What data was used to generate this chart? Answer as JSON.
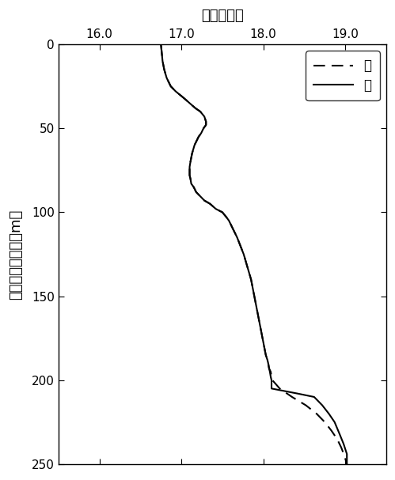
{
  "xlabel_top": "温度（度）",
  "ylabel": "地表からの深度（m）",
  "xlim": [
    15.5,
    19.5
  ],
  "ylim": [
    250,
    0
  ],
  "xticks": [
    16.0,
    17.0,
    18.0,
    19.0
  ],
  "yticks": [
    0,
    50,
    100,
    150,
    200,
    250
  ],
  "legend": [
    "夏",
    "冬"
  ],
  "summer_depth": [
    0,
    5,
    10,
    15,
    20,
    25,
    28,
    30,
    32,
    35,
    38,
    40,
    43,
    46,
    48,
    50,
    53,
    55,
    58,
    60,
    65,
    70,
    73,
    75,
    78,
    80,
    83,
    85,
    88,
    90,
    93,
    95,
    98,
    100,
    103,
    105,
    110,
    115,
    120,
    125,
    130,
    135,
    140,
    145,
    150,
    155,
    160,
    165,
    170,
    175,
    180,
    185,
    188,
    190,
    193,
    195,
    198,
    200,
    205,
    210,
    215,
    220,
    225,
    230,
    235,
    240,
    245,
    250
  ],
  "summer_temp": [
    16.75,
    16.76,
    16.77,
    16.79,
    16.82,
    16.87,
    16.93,
    16.98,
    17.03,
    17.1,
    17.17,
    17.23,
    17.28,
    17.3,
    17.3,
    17.27,
    17.24,
    17.21,
    17.18,
    17.16,
    17.13,
    17.11,
    17.1,
    17.1,
    17.1,
    17.11,
    17.12,
    17.15,
    17.18,
    17.22,
    17.28,
    17.35,
    17.42,
    17.5,
    17.55,
    17.58,
    17.63,
    17.68,
    17.72,
    17.76,
    17.79,
    17.82,
    17.85,
    17.87,
    17.89,
    17.91,
    17.93,
    17.95,
    17.97,
    17.99,
    18.01,
    18.03,
    18.05,
    18.06,
    18.07,
    18.09,
    18.1,
    18.11,
    18.2,
    18.35,
    18.52,
    18.65,
    18.75,
    18.83,
    18.9,
    18.95,
    18.99,
    19.02
  ],
  "winter_depth": [
    0,
    5,
    10,
    15,
    20,
    25,
    28,
    30,
    32,
    35,
    38,
    40,
    43,
    46,
    48,
    50,
    53,
    55,
    58,
    60,
    65,
    70,
    73,
    75,
    78,
    80,
    83,
    85,
    88,
    90,
    93,
    95,
    98,
    100,
    103,
    105,
    110,
    115,
    120,
    125,
    130,
    135,
    140,
    145,
    150,
    155,
    160,
    165,
    170,
    175,
    180,
    185,
    188,
    190,
    193,
    195,
    198,
    200,
    200,
    202,
    205,
    208,
    210,
    215,
    220,
    225,
    232,
    238,
    244,
    250
  ],
  "winter_temp": [
    16.75,
    16.76,
    16.77,
    16.79,
    16.82,
    16.87,
    16.93,
    16.98,
    17.03,
    17.1,
    17.17,
    17.23,
    17.28,
    17.3,
    17.3,
    17.27,
    17.24,
    17.21,
    17.18,
    17.16,
    17.13,
    17.11,
    17.1,
    17.1,
    17.1,
    17.11,
    17.12,
    17.15,
    17.18,
    17.22,
    17.28,
    17.35,
    17.42,
    17.5,
    17.55,
    17.58,
    17.63,
    17.68,
    17.72,
    17.76,
    17.79,
    17.82,
    17.85,
    17.87,
    17.89,
    17.91,
    17.93,
    17.95,
    17.97,
    17.99,
    18.01,
    18.03,
    18.05,
    18.06,
    18.07,
    18.08,
    18.09,
    18.1,
    18.1,
    18.1,
    18.1,
    18.42,
    18.62,
    18.72,
    18.8,
    18.87,
    18.93,
    18.98,
    19.02,
    19.02
  ],
  "line_color": "#000000",
  "background_color": "#ffffff"
}
